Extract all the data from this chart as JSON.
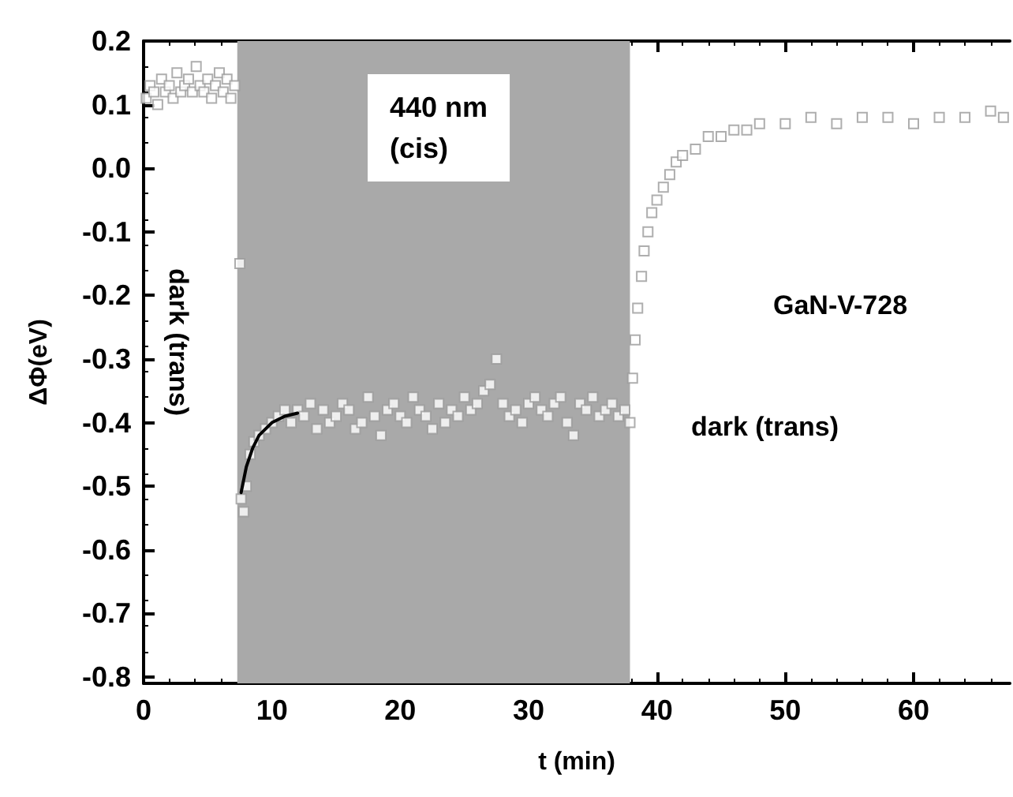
{
  "chart_data": {
    "type": "scatter",
    "xlabel": "t (min)",
    "ylabel": "ΔΦ(eV)",
    "xlim": [
      0,
      67.5
    ],
    "xticks": [
      0,
      10,
      20,
      30,
      40,
      50,
      60
    ],
    "ylim": [
      -0.81,
      0.2
    ],
    "yticks": [
      -0.8,
      -0.7,
      -0.6,
      -0.5,
      -0.4,
      -0.3,
      -0.2,
      -0.1,
      {
        "value": 0,
        "label": "0.0"
      },
      0.1,
      0.2
    ],
    "marker": "square",
    "bands": [
      {
        "axis": "x",
        "from": 7.3,
        "to": 37.9,
        "label": "440 nm (cis)",
        "color": "#a9a9a9"
      }
    ],
    "annotations": [
      "dark (trans)",
      "GaN-V-728",
      "dark (trans)"
    ],
    "series": [
      {
        "color": "#9a9a9a",
        "x": [
          0.2,
          0.5,
          0.8,
          1.1,
          1.4,
          1.7,
          2.0,
          2.3,
          2.6,
          2.9,
          3.2,
          3.5,
          3.8,
          4.1,
          4.4,
          4.7,
          5.0,
          5.3,
          5.6,
          5.9,
          6.2,
          6.5,
          6.8,
          7.1,
          7.5,
          7.6,
          7.8,
          8.0,
          8.3,
          8.6,
          9.0,
          9.5,
          10.0,
          10.5,
          11.0,
          11.5,
          12.0,
          12.5,
          13.0,
          13.5,
          14.0,
          14.5,
          15.0,
          15.5,
          16.0,
          16.5,
          17.0,
          17.5,
          18.0,
          18.5,
          19.0,
          19.5,
          20.0,
          20.5,
          21.0,
          21.5,
          22.0,
          22.5,
          23.0,
          23.5,
          24.0,
          24.5,
          25.0,
          25.5,
          26.0,
          26.5,
          27.0,
          27.5,
          28.0,
          28.5,
          29.0,
          29.5,
          30.0,
          30.5,
          31.0,
          31.5,
          32.0,
          32.5,
          33.0,
          33.5,
          34.0,
          34.5,
          35.0,
          35.5,
          36.0,
          36.5,
          37.0,
          37.5,
          37.9,
          38.1,
          38.3,
          38.5,
          38.8,
          39.0,
          39.3,
          39.6,
          40.0,
          40.5,
          41.0,
          41.5,
          42.0,
          43.0,
          44.0,
          45.0,
          46.0,
          47.0,
          48.0,
          50.0,
          52.0,
          54.0,
          56.0,
          58.0,
          60.0,
          62.0,
          64.0,
          66.0,
          67.0
        ],
        "values": [
          0.11,
          0.13,
          0.12,
          0.1,
          0.14,
          0.12,
          0.13,
          0.11,
          0.15,
          0.12,
          0.13,
          0.14,
          0.12,
          0.16,
          0.13,
          0.12,
          0.14,
          0.11,
          0.13,
          0.15,
          0.12,
          0.14,
          0.11,
          0.13,
          -0.15,
          -0.52,
          -0.54,
          -0.5,
          -0.45,
          -0.43,
          -0.42,
          -0.41,
          -0.4,
          -0.39,
          -0.38,
          -0.4,
          -0.38,
          -0.39,
          -0.37,
          -0.41,
          -0.38,
          -0.4,
          -0.39,
          -0.37,
          -0.38,
          -0.41,
          -0.4,
          -0.36,
          -0.39,
          -0.42,
          -0.38,
          -0.37,
          -0.39,
          -0.4,
          -0.36,
          -0.38,
          -0.39,
          -0.41,
          -0.37,
          -0.4,
          -0.38,
          -0.39,
          -0.36,
          -0.38,
          -0.37,
          -0.35,
          -0.34,
          -0.3,
          -0.37,
          -0.39,
          -0.38,
          -0.4,
          -0.37,
          -0.36,
          -0.38,
          -0.39,
          -0.37,
          -0.36,
          -0.4,
          -0.42,
          -0.37,
          -0.38,
          -0.36,
          -0.39,
          -0.38,
          -0.37,
          -0.39,
          -0.38,
          -0.4,
          -0.33,
          -0.27,
          -0.22,
          -0.17,
          -0.13,
          -0.1,
          -0.07,
          -0.05,
          -0.03,
          -0.01,
          0.01,
          0.02,
          0.03,
          0.05,
          0.05,
          0.06,
          0.06,
          0.07,
          0.07,
          0.08,
          0.07,
          0.08,
          0.08,
          0.07,
          0.08,
          0.08,
          0.09,
          0.08
        ]
      },
      {
        "type": "line",
        "marker": "none",
        "color": "#000000",
        "x": [
          7.6,
          8.0,
          8.5,
          9.0,
          10.0,
          11.0,
          12.0
        ],
        "values": [
          -0.51,
          -0.47,
          -0.44,
          -0.42,
          -0.4,
          -0.39,
          -0.385
        ]
      }
    ]
  }
}
